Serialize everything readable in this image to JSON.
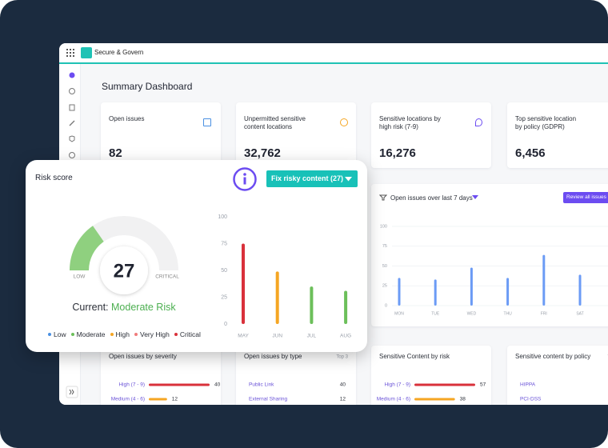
{
  "header": {
    "app_name": "Secure & Govern"
  },
  "dashboard": {
    "title": "Summary Dashboard",
    "cards": [
      {
        "title": "Open issues",
        "value": "82"
      },
      {
        "title": "Unpermitted sensitive content locations",
        "value": "32,762"
      },
      {
        "title": "Sensitive locations by high risk (7-9)",
        "value": "16,276"
      },
      {
        "title": "Top sensitive location by policy (GDPR)",
        "value": "6,456"
      }
    ],
    "review_button": "Review all issues",
    "bottom_cards": [
      {
        "title": "Open issues by severity",
        "bars": true,
        "rows": [
          {
            "label": "High (7 - 9)",
            "value": 40,
            "color": "#d9313b"
          },
          {
            "label": "Medium (4 - 6)",
            "value": 12,
            "color": "#f5a623"
          }
        ]
      },
      {
        "title": "Open issues by type",
        "note": "Top 3",
        "bars": false,
        "rows": [
          {
            "label": "Public Link",
            "value": 40
          },
          {
            "label": "External Sharing",
            "value": 12
          }
        ]
      },
      {
        "title": "Sensitive Content by risk",
        "bars": true,
        "rows": [
          {
            "label": "High (7 - 9)",
            "value": 57,
            "color": "#d9313b"
          },
          {
            "label": "Medium (4 - 6)",
            "value": 38,
            "color": "#f5a623"
          }
        ]
      },
      {
        "title": "Sensitive content by policy",
        "note": "Top 3",
        "bars": false,
        "rows": [
          {
            "label": "HIPPA"
          },
          {
            "label": "PCI-DSS"
          }
        ]
      }
    ]
  },
  "risk_card": {
    "title": "Risk score",
    "button": "Fix risky content (27)",
    "score": "27",
    "gauge_low": "LOW",
    "gauge_high": "CRITICAL",
    "status_prefix": "Current:",
    "status": "Moderate Risk",
    "legend": [
      {
        "label": "Low",
        "color": "#4a90e2"
      },
      {
        "label": "Moderate",
        "color": "#6cbf5a"
      },
      {
        "label": "High",
        "color": "#f5a623"
      },
      {
        "label": "Very High",
        "color": "#f07b7b"
      },
      {
        "label": "Critical",
        "color": "#d9313b"
      }
    ]
  },
  "chart_data": [
    {
      "type": "bar",
      "title": "Open issues over last 7 days",
      "categories": [
        "MON",
        "TUE",
        "WED",
        "THU",
        "FRI",
        "SAT"
      ],
      "values": [
        35,
        33,
        48,
        35,
        64,
        39
      ],
      "color": "#6b9bf5",
      "ylim": [
        0,
        100
      ],
      "yticks": [
        0,
        25,
        50,
        75,
        100
      ],
      "grid": true
    },
    {
      "type": "bar",
      "categories": [
        "MAY",
        "JUN",
        "JUL",
        "AUG"
      ],
      "values": [
        75,
        49,
        35,
        31
      ],
      "colors": [
        "#d9313b",
        "#f5a623",
        "#6cbf5a",
        "#6cbf5a"
      ],
      "ylim": [
        0,
        100
      ],
      "yticks": [
        0,
        25,
        50,
        75,
        100
      ],
      "grid": false
    }
  ]
}
